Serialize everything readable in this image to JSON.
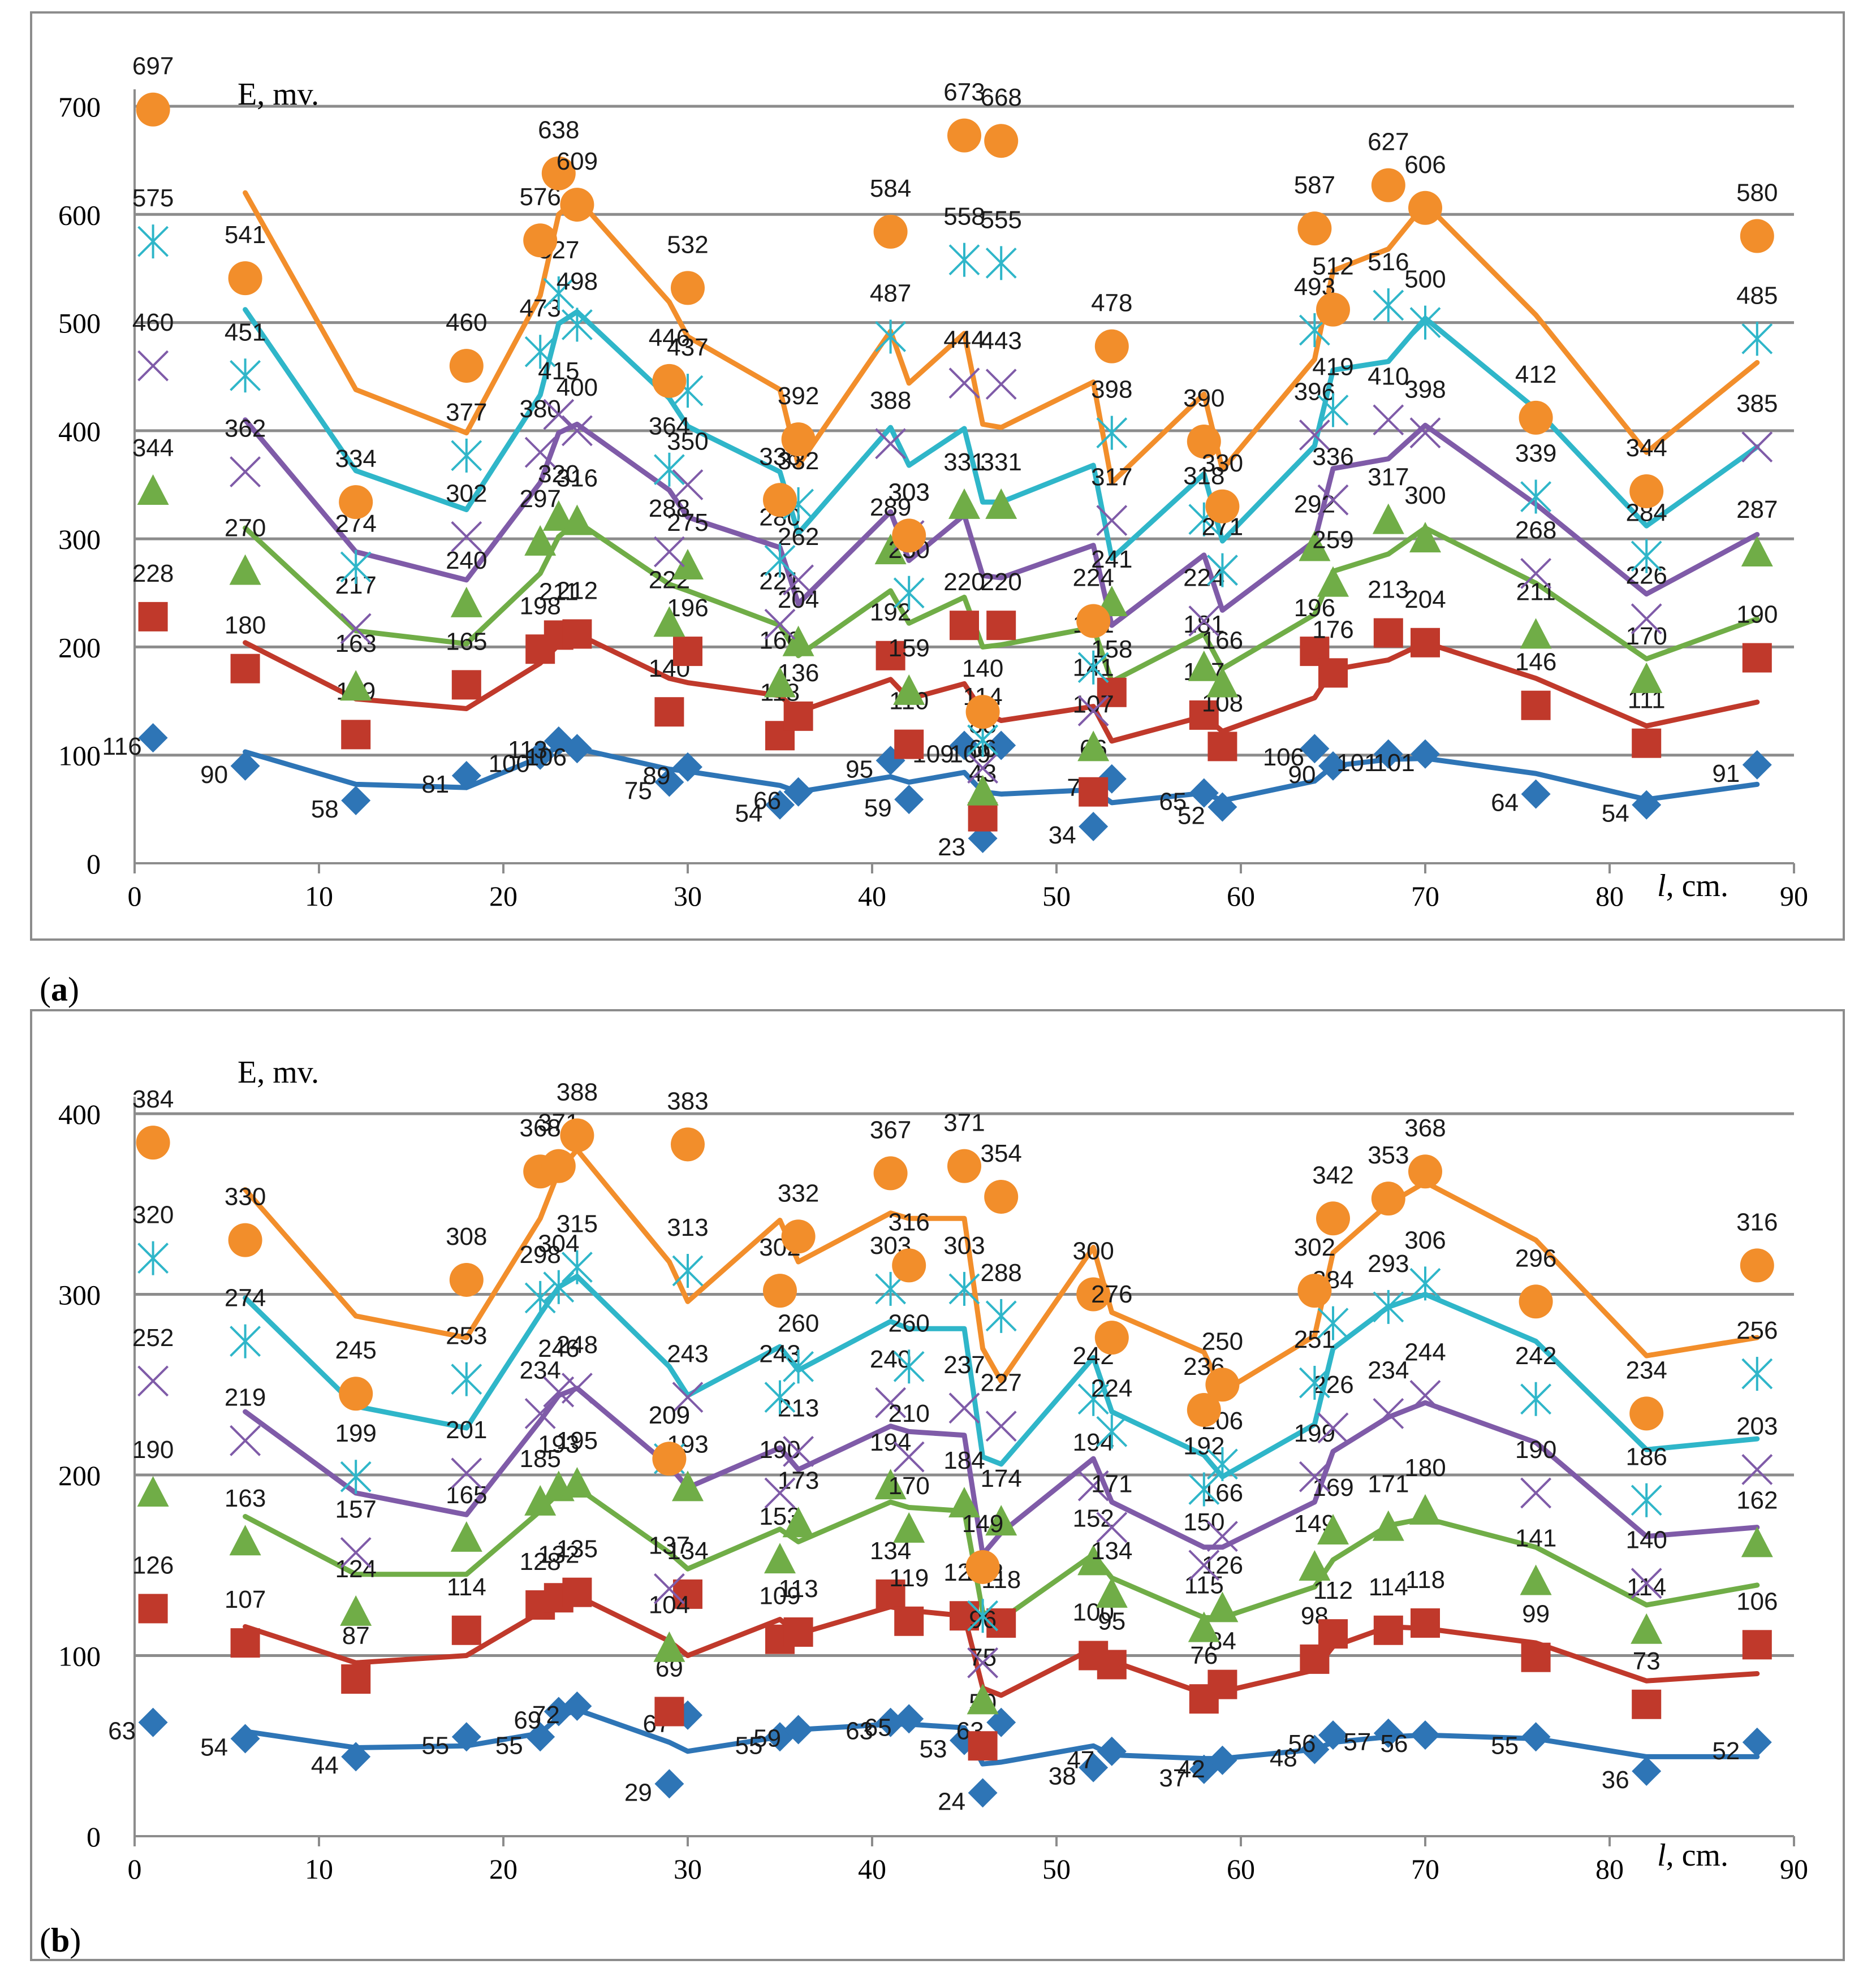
{
  "charts": [
    {
      "panel_label": "(a)",
      "chart_data": {
        "type": "scatter",
        "ylabel": "E, mv.",
        "xlabel": "l, cm.",
        "xlim": [
          0,
          90
        ],
        "ylim": [
          0,
          700
        ],
        "x_ticks": [
          0,
          10,
          20,
          30,
          40,
          50,
          60,
          70,
          80,
          90
        ],
        "y_ticks": [
          0,
          100,
          200,
          300,
          400,
          500,
          600,
          700
        ],
        "grid": true,
        "x": [
          1,
          6,
          12,
          18,
          22,
          23,
          24,
          29,
          30,
          35,
          36,
          41,
          42,
          45,
          46,
          47,
          52,
          53,
          58,
          59,
          64,
          65,
          68,
          70,
          76,
          82,
          88
        ],
        "series": [
          {
            "name": "diamond",
            "marker": "diamond",
            "color": "#2e75b6",
            "values": [
              116,
              90,
              58,
              81,
              100,
              113,
              106,
              75,
              89,
              54,
              66,
              95,
              59,
              109,
              23,
              109,
              34,
              78,
              65,
              52,
              106,
              90,
              101,
              101,
              64,
              54,
              91
            ],
            "trend": [
              null,
              103,
              73,
              70,
              98,
              108,
              106,
              87,
              85,
              72,
              66,
              80,
              75,
              84,
              66,
              64,
              68,
              56,
              65,
              58,
              76,
              90,
              96,
              97,
              83,
              59,
              73
            ]
          },
          {
            "name": "square",
            "marker": "square",
            "color": "#c0392b",
            "values": [
              228,
              180,
              119,
              165,
              198,
              211,
              212,
              140,
              196,
              118,
              136,
              192,
              110,
              220,
              43,
              220,
              66,
              158,
              137,
              108,
              196,
              176,
              213,
              204,
              146,
              111,
              190
            ],
            "trend": [
              null,
              204,
              152,
              143,
              185,
              202,
              212,
              171,
              167,
              155,
              140,
              170,
              152,
              166,
              140,
              132,
              145,
              113,
              136,
              122,
              153,
              179,
              188,
              204,
              171,
              127,
              149
            ]
          },
          {
            "name": "triangle",
            "marker": "triangle",
            "color": "#70ad47",
            "values": [
              344,
              270,
              163,
              240,
              297,
              320,
              316,
              222,
              275,
              166,
              204,
              289,
              159,
              331,
              66,
              331,
              107,
              241,
              181,
              166,
              292,
              259,
              317,
              300,
              211,
              170,
              287
            ],
            "trend": [
              null,
              310,
              215,
              203,
              268,
              302,
              316,
              258,
              252,
              220,
              192,
              252,
              222,
              246,
              200,
              202,
              218,
              168,
              212,
              180,
              230,
              270,
              286,
              310,
              259,
              189,
              226
            ]
          },
          {
            "name": "x",
            "marker": "x",
            "color": "#7f5ba8",
            "values": [
              460,
              362,
              217,
              302,
              380,
              415,
              400,
              288,
              350,
              221,
              262,
              388,
              303,
              444,
              88,
              443,
              141,
              317,
              224,
              271,
              396,
              336,
              410,
              398,
              268,
              226,
              385
            ],
            "trend": [
              null,
              410,
              288,
              262,
              352,
              398,
              406,
              345,
              320,
              292,
              240,
              325,
              280,
              322,
              266,
              264,
              294,
              220,
              285,
              234,
              298,
              365,
              374,
              405,
              332,
              249,
              304
            ]
          },
          {
            "name": "star",
            "marker": "star",
            "color": "#2fb6c9",
            "values": [
              575,
              451,
              274,
              377,
              473,
              527,
              498,
              364,
              437,
              280,
              332,
              487,
              250,
              558,
              114,
              555,
              181,
              398,
              318,
              271,
              493,
              419,
              516,
              500,
              339,
              284,
              485
            ],
            "trend": [
              null,
              512,
              363,
              327,
              433,
              499,
              510,
              430,
              404,
              362,
              305,
              403,
              368,
              402,
              334,
              334,
              368,
              282,
              360,
              298,
              386,
              456,
              464,
              504,
              420,
              312,
              385
            ]
          },
          {
            "name": "circle",
            "marker": "circle",
            "color": "#f28e2b",
            "values": [
              697,
              541,
              334,
              460,
              576,
              638,
              609,
              446,
              532,
              336,
              392,
              584,
              303,
              673,
              140,
              668,
              224,
              478,
              390,
              330,
              587,
              512,
              627,
              606,
              412,
              344,
              580
            ],
            "trend": [
              null,
              620,
              438,
              398,
              525,
              600,
              615,
              519,
              487,
              438,
              368,
              492,
              444,
              490,
              406,
              403,
              445,
              352,
              434,
              364,
              466,
              548,
              568,
              610,
              507,
              380,
              463
            ]
          }
        ]
      }
    },
    {
      "panel_label": "(b)",
      "chart_data": {
        "type": "scatter",
        "ylabel": "E, mv.",
        "xlabel": "l, cm.",
        "xlim": [
          0,
          90
        ],
        "ylim": [
          0,
          400
        ],
        "x_ticks": [
          0,
          10,
          20,
          30,
          40,
          50,
          60,
          70,
          80,
          90
        ],
        "y_ticks": [
          0,
          100,
          200,
          300,
          400
        ],
        "grid": true,
        "x": [
          1,
          6,
          12,
          18,
          22,
          23,
          24,
          29,
          30,
          35,
          36,
          41,
          42,
          45,
          46,
          47,
          52,
          53,
          58,
          59,
          64,
          65,
          68,
          70,
          76,
          82,
          88
        ],
        "series": [
          {
            "name": "diamond",
            "marker": "diamond",
            "color": "#2e75b6",
            "values": [
              63,
              54,
              44,
              55,
              55,
              69,
              72,
              29,
              67,
              55,
              59,
              63,
              65,
              53,
              24,
              63,
              38,
              47,
              37,
              42,
              48,
              56,
              57,
              56,
              55,
              36,
              52
            ],
            "trend": [
              null,
              58,
              49,
              50,
              57,
              66,
              70,
              52,
              47,
              55,
              59,
              62,
              62,
              60,
              40,
              41,
              50,
              45,
              43,
              43,
              48,
              52,
              55,
              56,
              54,
              44,
              44
            ]
          },
          {
            "name": "square",
            "marker": "square",
            "color": "#c0392b",
            "values": [
              126,
              107,
              87,
              114,
              128,
              132,
              135,
              69,
              134,
              109,
              113,
              134,
              119,
              122,
              50,
              118,
              100,
              95,
              76,
              84,
              98,
              112,
              114,
              118,
              99,
              73,
              106
            ],
            "trend": [
              null,
              116,
              96,
              100,
              124,
              130,
              133,
              108,
              100,
              120,
              112,
              127,
              125,
              122,
              82,
              78,
              104,
              97,
              79,
              80,
              92,
              105,
              116,
              115,
              107,
              86,
              90
            ]
          },
          {
            "name": "triangle",
            "marker": "triangle",
            "color": "#70ad47",
            "values": [
              190,
              163,
              124,
              165,
              185,
              193,
              195,
              104,
              193,
              153,
              173,
              194,
              170,
              184,
              75,
              174,
              152,
              134,
              115,
              126,
              149,
              169,
              171,
              180,
              141,
              114,
              162
            ],
            "trend": [
              null,
              177,
              145,
              145,
              180,
              190,
              193,
              157,
              148,
              170,
              163,
              185,
              182,
              180,
              124,
              120,
              156,
              143,
              121,
              121,
              138,
              153,
              172,
              176,
              160,
              128,
              139
            ]
          },
          {
            "name": "x",
            "marker": "x",
            "color": "#7f5ba8",
            "values": [
              252,
              219,
              157,
              201,
              234,
              246,
              248,
              137,
              243,
              190,
              213,
              240,
              210,
              237,
              96,
              227,
              194,
              171,
              150,
              166,
              199,
              226,
              234,
              244,
              190,
              140,
              203
            ],
            "trend": [
              null,
              235,
              190,
              178,
              230,
              244,
              248,
              205,
              193,
              215,
              203,
              227,
              224,
              222,
              156,
              168,
              209,
              185,
              160,
              160,
              185,
              213,
              232,
              240,
              218,
              166,
              171
            ]
          },
          {
            "name": "star",
            "marker": "star",
            "color": "#2fb6c9",
            "values": [
              320,
              274,
              199,
              253,
              298,
              304,
              315,
              209,
              313,
              243,
              260,
              303,
              260,
              303,
              122,
              288,
              242,
              224,
              192,
              206,
              251,
              284,
              293,
              306,
              242,
              186,
              256
            ],
            "trend": [
              null,
              298,
              238,
              226,
              289,
              304,
              310,
              260,
              244,
              271,
              258,
              285,
              281,
              281,
              210,
              206,
              265,
              235,
              211,
              199,
              228,
              270,
              293,
              300,
              274,
              214,
              220
            ]
          },
          {
            "name": "circle",
            "marker": "circle",
            "color": "#f28e2b",
            "values": [
              384,
              330,
              245,
              308,
              368,
              371,
              388,
              209,
              383,
              302,
              332,
              367,
              316,
              371,
              149,
              354,
              300,
              276,
              236,
              250,
              302,
              342,
              353,
              368,
              296,
              234,
              316
            ],
            "trend": [
              null,
              358,
              288,
              276,
              342,
              368,
              380,
              318,
              296,
              341,
              318,
              345,
              342,
              342,
              270,
              252,
              326,
              290,
              268,
              246,
              277,
              323,
              350,
              362,
              330,
              266,
              276
            ]
          }
        ]
      }
    }
  ]
}
